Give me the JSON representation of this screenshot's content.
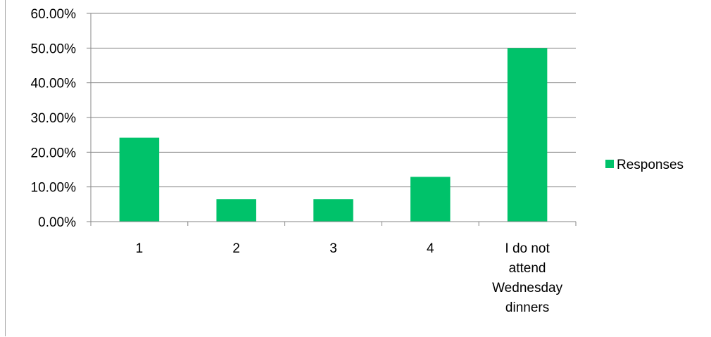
{
  "chart_data": {
    "type": "bar",
    "categories": [
      "1",
      "2",
      "3",
      "4",
      "I do not attend Wednesday dinners"
    ],
    "category_lines": [
      [
        "1"
      ],
      [
        "2"
      ],
      [
        "3"
      ],
      [
        "4"
      ],
      [
        "I do not",
        "attend",
        "Wednesday",
        "dinners"
      ]
    ],
    "series": [
      {
        "name": "Responses",
        "values": [
          24.19,
          6.45,
          6.45,
          12.9,
          50.0
        ],
        "color": "#00c26a"
      }
    ],
    "yticks": [
      "0.00%",
      "10.00%",
      "20.00%",
      "30.00%",
      "40.00%",
      "50.00%",
      "60.00%"
    ],
    "ylim": [
      0,
      60
    ],
    "grid": true,
    "legend_position": "right",
    "axis_color": "#868686",
    "grid_color": "#868686"
  }
}
